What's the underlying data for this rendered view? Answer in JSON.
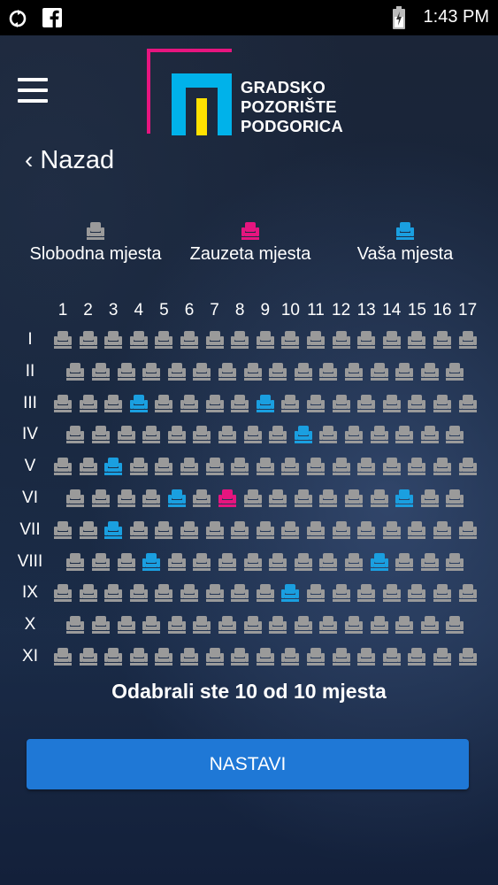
{
  "status_bar": {
    "time": "1:43 PM",
    "icons": [
      "sync-icon",
      "facebook-icon",
      "battery-icon"
    ]
  },
  "header": {
    "menu_icon": "hamburger-menu-icon",
    "logo_lines": [
      "GRADSKO",
      "POZORIŠTE",
      "PODGORICA"
    ],
    "colors": {
      "magenta": "#e6157f",
      "cyan": "#00b2ea",
      "yellow": "#ffe100"
    }
  },
  "nav": {
    "back_label": "Nazad"
  },
  "legend": [
    {
      "label": "Slobodna mjesta",
      "color": "#9a9a9a"
    },
    {
      "label": "Zauzeta mjesta",
      "color": "#e6157f"
    },
    {
      "label": "Vaša mjesta",
      "color": "#1a9fe0"
    }
  ],
  "seating": {
    "columns": [
      "1",
      "2",
      "3",
      "4",
      "5",
      "6",
      "7",
      "8",
      "9",
      "10",
      "11",
      "12",
      "13",
      "14",
      "15",
      "16",
      "17"
    ],
    "rows": [
      {
        "label": "I",
        "count": 17,
        "offset": false,
        "selected": [],
        "taken": []
      },
      {
        "label": "II",
        "count": 16,
        "offset": true,
        "selected": [],
        "taken": []
      },
      {
        "label": "III",
        "count": 17,
        "offset": false,
        "selected": [
          4,
          9
        ],
        "taken": []
      },
      {
        "label": "IV",
        "count": 16,
        "offset": true,
        "selected": [
          10
        ],
        "taken": []
      },
      {
        "label": "V",
        "count": 17,
        "offset": false,
        "selected": [
          3
        ],
        "taken": []
      },
      {
        "label": "VI",
        "count": 16,
        "offset": true,
        "selected": [
          5,
          14
        ],
        "taken": [
          7
        ]
      },
      {
        "label": "VII",
        "count": 17,
        "offset": false,
        "selected": [
          3
        ],
        "taken": []
      },
      {
        "label": "VIII",
        "count": 16,
        "offset": true,
        "selected": [
          4,
          13
        ],
        "taken": []
      },
      {
        "label": "IX",
        "count": 17,
        "offset": false,
        "selected": [
          10
        ],
        "taken": []
      },
      {
        "label": "X",
        "count": 16,
        "offset": true,
        "selected": [],
        "taken": []
      },
      {
        "label": "XI",
        "count": 17,
        "offset": false,
        "selected": [],
        "taken": []
      }
    ]
  },
  "summary": "Odabrali ste 10 od 10 mjesta",
  "cta_label": "NASTAVI"
}
